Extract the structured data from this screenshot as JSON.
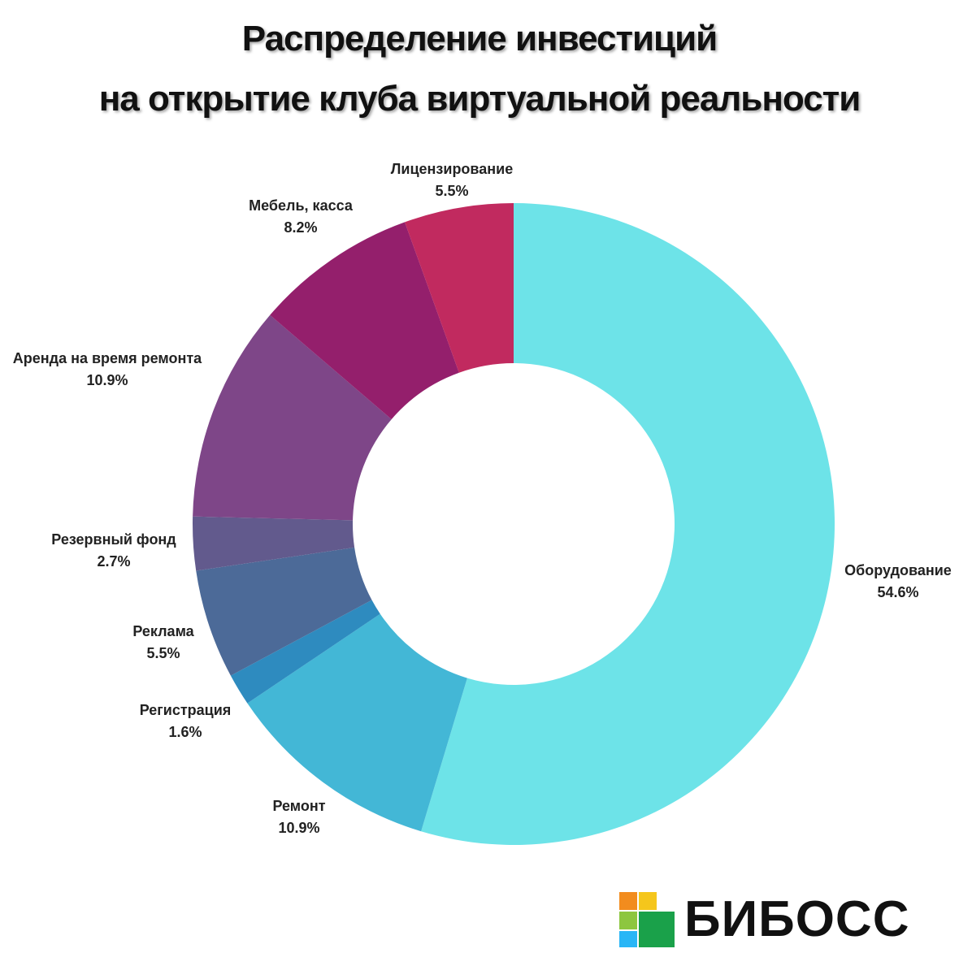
{
  "title_lines": [
    "Распределение инвестиций",
    "на открытие клуба виртуальной реальности"
  ],
  "brand": {
    "name": "БИБОСС",
    "logo_colors": [
      "#f28c1e",
      "#f5c61c",
      "#8dc63f",
      "#1aa14a",
      "#29b6f6"
    ]
  },
  "chart_data": {
    "type": "donut",
    "title": "Распределение инвестиций на открытие клуба виртуальной реальности",
    "start_angle_deg": 0,
    "direction": "clockwise",
    "slices": [
      {
        "label": "Оборудование",
        "value": 54.6,
        "value_label": "54.6%",
        "color": "#6de3e8"
      },
      {
        "label": "Ремонт",
        "value": 10.9,
        "value_label": "10.9%",
        "color": "#43b7d6"
      },
      {
        "label": "Регистрация",
        "value": 1.6,
        "value_label": "1.6%",
        "color": "#2e8bbf"
      },
      {
        "label": "Реклама",
        "value": 5.5,
        "value_label": "5.5%",
        "color": "#4c6a98"
      },
      {
        "label": "Резервный фонд",
        "value": 2.7,
        "value_label": "2.7%",
        "color": "#625a8d"
      },
      {
        "label": "Аренда на время ремонта",
        "value": 10.9,
        "value_label": "10.9%",
        "color": "#7e4688"
      },
      {
        "label": "Мебель, касса",
        "value": 8.2,
        "value_label": "8.2%",
        "color": "#941f6c"
      },
      {
        "label": "Лицензирование",
        "value": 5.5,
        "value_label": "5.5%",
        "color": "#c12a5f"
      }
    ]
  }
}
